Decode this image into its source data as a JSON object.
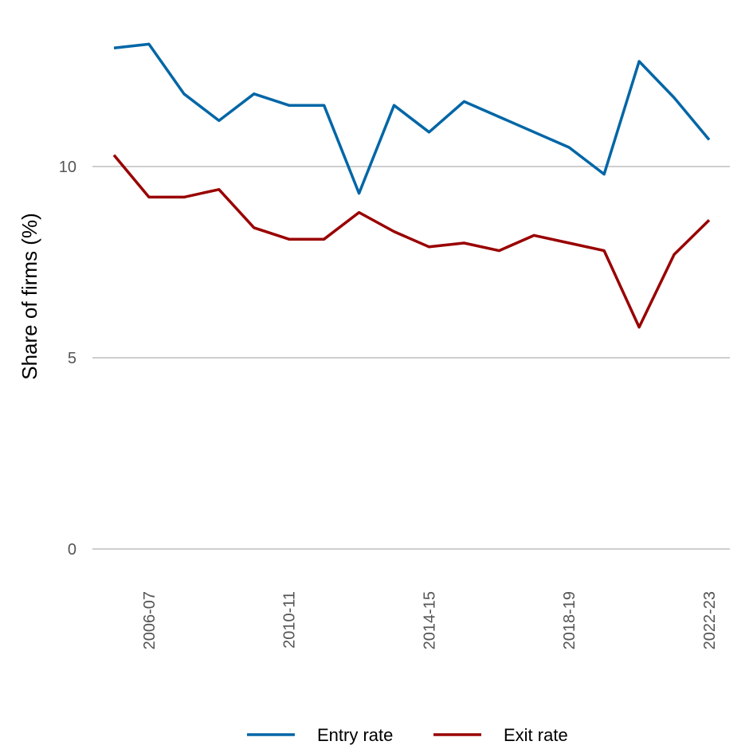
{
  "chart_data": {
    "type": "line",
    "title": "",
    "xlabel": "",
    "ylabel": "Share of firms (%)",
    "ylim": [
      0,
      13.5
    ],
    "yticks": [
      0,
      5,
      10
    ],
    "grid": "horizontal",
    "legend_position": "bottom",
    "x": [
      "2005-06",
      "2006-07",
      "2007-08",
      "2008-09",
      "2009-10",
      "2010-11",
      "2011-12",
      "2012-13",
      "2013-14",
      "2014-15",
      "2015-16",
      "2016-17",
      "2017-18",
      "2018-19",
      "2019-20",
      "2020-21",
      "2021-22",
      "2022-23"
    ],
    "xtick_labels": [
      "2006-07",
      "2010-11",
      "2014-15",
      "2018-19",
      "2022-23"
    ],
    "series": [
      {
        "name": "Entry rate",
        "color": "#0066a6",
        "values": [
          13.1,
          13.2,
          11.9,
          11.2,
          11.9,
          11.6,
          11.6,
          9.3,
          11.6,
          10.9,
          11.7,
          11.3,
          10.9,
          10.5,
          9.8,
          12.75,
          11.8,
          10.7
        ]
      },
      {
        "name": "Exit rate",
        "color": "#990000",
        "values": [
          10.3,
          9.2,
          9.2,
          9.4,
          8.4,
          8.1,
          8.1,
          8.8,
          8.3,
          7.9,
          8.0,
          7.8,
          8.2,
          8.0,
          7.8,
          5.8,
          7.7,
          8.6
        ]
      }
    ]
  }
}
